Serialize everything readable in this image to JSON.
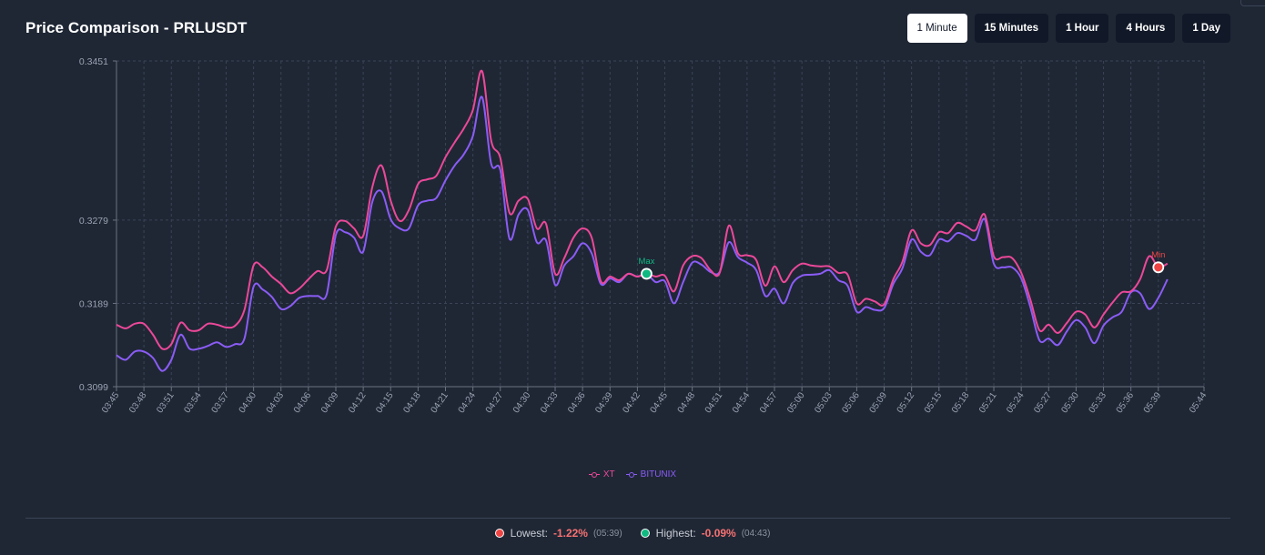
{
  "title": "Price Comparison - PRLUSDT",
  "timeframes": [
    {
      "label": "1 Minute",
      "active": true
    },
    {
      "label": "15 Minutes",
      "active": false
    },
    {
      "label": "1 Hour",
      "active": false
    },
    {
      "label": "4 Hours",
      "active": false
    },
    {
      "label": "1 Day",
      "active": false
    }
  ],
  "legend": [
    {
      "name": "XT",
      "color": "#ec4899"
    },
    {
      "name": "BITUNIX",
      "color": "#8b5cf6"
    }
  ],
  "footer": {
    "lowest_label": "Lowest:",
    "lowest_value": "-1.22%",
    "lowest_time": "(05:39)",
    "lowest_color": "#ef4444",
    "highest_label": "Highest:",
    "highest_value": "-0.09%",
    "highest_time": "(04:43)",
    "highest_color": "#10b981"
  },
  "chart_data": {
    "type": "line",
    "ylim": [
      0.3099,
      0.3451
    ],
    "yticks": [
      "0.3099",
      "0.3189",
      "0.3279",
      "0.3451"
    ],
    "xticks": [
      "03:45",
      "03:48",
      "03:51",
      "03:54",
      "03:57",
      "04:00",
      "04:03",
      "04:06",
      "04:09",
      "04:12",
      "04:15",
      "04:18",
      "04:21",
      "04:24",
      "04:27",
      "04:30",
      "04:33",
      "04:36",
      "04:39",
      "04:42",
      "04:45",
      "04:48",
      "04:51",
      "04:54",
      "04:57",
      "05:00",
      "05:03",
      "05:06",
      "05:09",
      "05:12",
      "05:15",
      "05:18",
      "05:21",
      "05:24",
      "05:27",
      "05:30",
      "05:33",
      "05:36",
      "05:39",
      "05:44"
    ],
    "grid": true,
    "x_start": "03:45",
    "x_interval_minutes": 1,
    "annotations": [
      {
        "label": "Max",
        "time": "04:43",
        "series": "XT",
        "color": "#10b981"
      },
      {
        "label": "Min",
        "time": "05:39",
        "series": "XT",
        "color": "#ef4444"
      }
    ],
    "series": [
      {
        "name": "XT",
        "color": "#ec4899",
        "values": [
          0.3166,
          0.3162,
          0.3167,
          0.3167,
          0.3155,
          0.314,
          0.3145,
          0.3168,
          0.316,
          0.316,
          0.3167,
          0.3166,
          0.3163,
          0.3165,
          0.3182,
          0.323,
          0.3228,
          0.3218,
          0.321,
          0.32,
          0.3205,
          0.3215,
          0.3224,
          0.3225,
          0.3272,
          0.3278,
          0.327,
          0.3262,
          0.3315,
          0.3338,
          0.33,
          0.3278,
          0.329,
          0.3318,
          0.3323,
          0.3327,
          0.3347,
          0.3363,
          0.3378,
          0.3398,
          0.344,
          0.3365,
          0.3346,
          0.3287,
          0.33,
          0.3302,
          0.327,
          0.3275,
          0.3221,
          0.3238,
          0.326,
          0.327,
          0.326,
          0.3213,
          0.3218,
          0.3214,
          0.3221,
          0.3218,
          0.3221,
          0.3218,
          0.3219,
          0.3202,
          0.323,
          0.324,
          0.3238,
          0.3225,
          0.3222,
          0.3273,
          0.3243,
          0.3241,
          0.3236,
          0.3208,
          0.3229,
          0.3212,
          0.3225,
          0.3232,
          0.323,
          0.3229,
          0.3229,
          0.3222,
          0.322,
          0.3189,
          0.3194,
          0.3191,
          0.3188,
          0.3215,
          0.3234,
          0.3268,
          0.3254,
          0.3252,
          0.3266,
          0.3265,
          0.3276,
          0.3272,
          0.3268,
          0.3285,
          0.324,
          0.3239,
          0.3238,
          0.3222,
          0.3193,
          0.316,
          0.3166,
          0.3157,
          0.3168,
          0.318,
          0.3177,
          0.3163,
          0.3177,
          0.319,
          0.3201,
          0.3202,
          0.3215,
          0.324,
          0.3228,
          0.3232
        ]
      },
      {
        "name": "BITUNIX",
        "color": "#8b5cf6",
        "values": [
          0.3133,
          0.3128,
          0.3137,
          0.3137,
          0.313,
          0.3116,
          0.3128,
          0.3155,
          0.314,
          0.314,
          0.3143,
          0.3147,
          0.3142,
          0.3145,
          0.3151,
          0.3207,
          0.3204,
          0.3196,
          0.3183,
          0.3186,
          0.3195,
          0.3197,
          0.3197,
          0.3199,
          0.3263,
          0.3266,
          0.326,
          0.3245,
          0.3299,
          0.331,
          0.328,
          0.327,
          0.327,
          0.3295,
          0.33,
          0.3303,
          0.3322,
          0.3338,
          0.335,
          0.337,
          0.3412,
          0.334,
          0.3333,
          0.3259,
          0.3285,
          0.329,
          0.3255,
          0.3257,
          0.3209,
          0.323,
          0.324,
          0.3254,
          0.3243,
          0.321,
          0.3216,
          0.3212,
          0.3221,
          0.3218,
          0.3221,
          0.3212,
          0.3213,
          0.3189,
          0.3212,
          0.3233,
          0.3231,
          0.3223,
          0.3223,
          0.3255,
          0.3239,
          0.3233,
          0.3225,
          0.3197,
          0.3205,
          0.3189,
          0.3211,
          0.3219,
          0.322,
          0.3221,
          0.3225,
          0.3214,
          0.3208,
          0.318,
          0.3185,
          0.3182,
          0.3184,
          0.321,
          0.3227,
          0.3258,
          0.3245,
          0.3241,
          0.3258,
          0.3256,
          0.3265,
          0.3262,
          0.3258,
          0.328,
          0.3232,
          0.3228,
          0.3228,
          0.3216,
          0.3185,
          0.3149,
          0.3151,
          0.3144,
          0.3159,
          0.3171,
          0.3163,
          0.3146,
          0.3165,
          0.3174,
          0.318,
          0.3201,
          0.32,
          0.3183,
          0.3195,
          0.3215
        ]
      }
    ]
  }
}
